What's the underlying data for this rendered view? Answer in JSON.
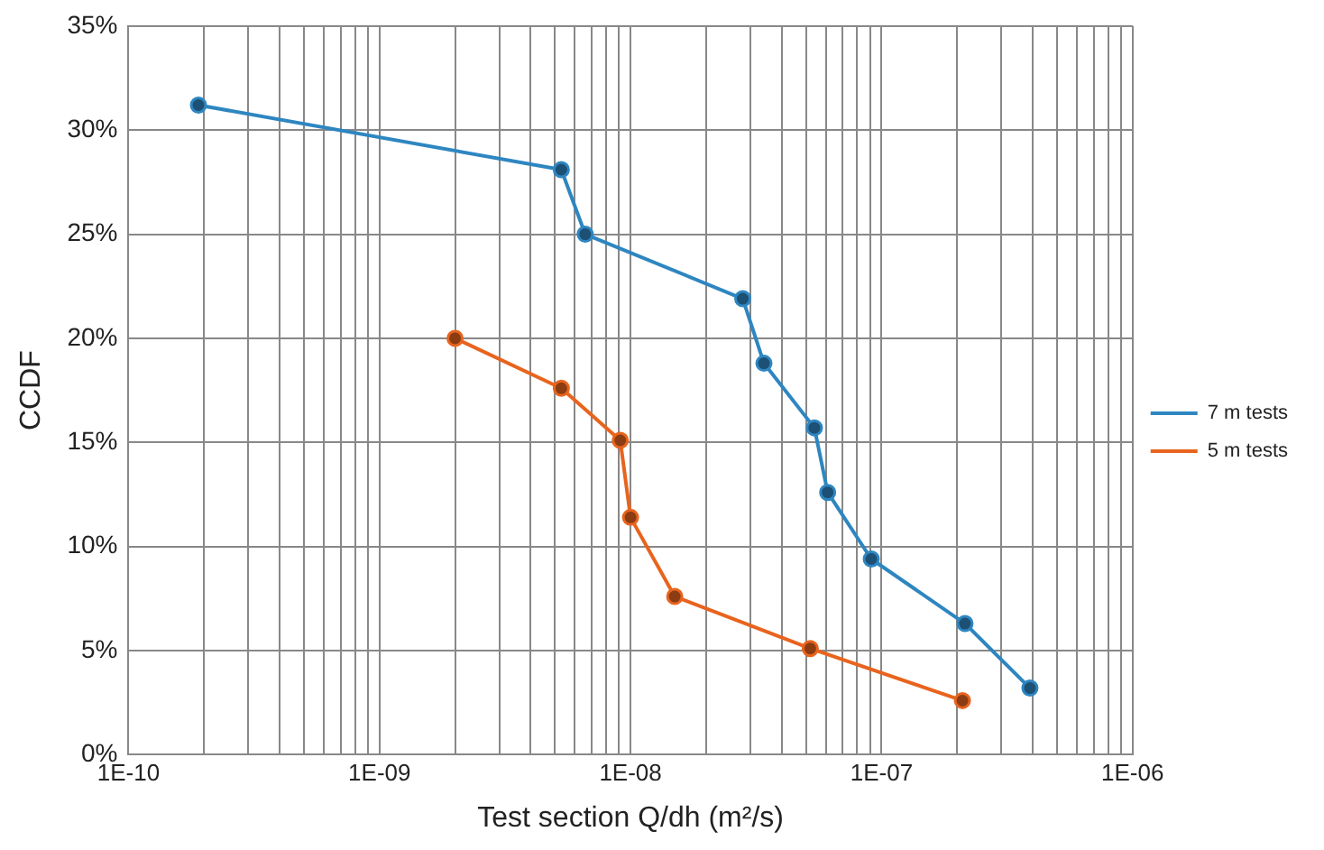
{
  "chart_data": {
    "type": "line",
    "xlabel": "Test section Q/dh (m²/s)",
    "ylabel": "CCDF",
    "log": "x",
    "grid": true,
    "legend": "right",
    "marker": "circle",
    "line_style": "solid",
    "xlim": [
      1e-10,
      1e-06
    ],
    "xticks": [
      {
        "value": 1e-10,
        "label": "1E-10"
      },
      {
        "value": 2e-10,
        "label": null
      },
      {
        "value": 3e-10,
        "label": null
      },
      {
        "value": 4e-10,
        "label": null
      },
      {
        "value": 5e-10,
        "label": null
      },
      {
        "value": 6e-10,
        "label": null
      },
      {
        "value": 7e-10,
        "label": null
      },
      {
        "value": 8e-10,
        "label": null
      },
      {
        "value": 9e-10,
        "label": null
      },
      {
        "value": 1e-09,
        "label": "1E-09"
      },
      {
        "value": 2e-09,
        "label": null
      },
      {
        "value": 3e-09,
        "label": null
      },
      {
        "value": 4e-09,
        "label": null
      },
      {
        "value": 5e-09,
        "label": null
      },
      {
        "value": 6e-09,
        "label": null
      },
      {
        "value": 7e-09,
        "label": null
      },
      {
        "value": 8e-09,
        "label": null
      },
      {
        "value": 9e-09,
        "label": null
      },
      {
        "value": 1e-08,
        "label": "1E-08"
      },
      {
        "value": 2e-08,
        "label": null
      },
      {
        "value": 3e-08,
        "label": null
      },
      {
        "value": 4e-08,
        "label": null
      },
      {
        "value": 5e-08,
        "label": null
      },
      {
        "value": 6e-08,
        "label": null
      },
      {
        "value": 7e-08,
        "label": null
      },
      {
        "value": 8e-08,
        "label": null
      },
      {
        "value": 9e-08,
        "label": null
      },
      {
        "value": 1e-07,
        "label": "1E-07"
      },
      {
        "value": 2e-07,
        "label": null
      },
      {
        "value": 3e-07,
        "label": null
      },
      {
        "value": 4e-07,
        "label": null
      },
      {
        "value": 5e-07,
        "label": null
      },
      {
        "value": 6e-07,
        "label": null
      },
      {
        "value": 7e-07,
        "label": null
      },
      {
        "value": 8e-07,
        "label": null
      },
      {
        "value": 9e-07,
        "label": null
      },
      {
        "value": 1e-06,
        "label": "1E-06"
      }
    ],
    "ylim": [
      0,
      35
    ],
    "yticks": [
      {
        "value": 0,
        "label": "0%"
      },
      {
        "value": 5,
        "label": "5%"
      },
      {
        "value": 10,
        "label": "10%"
      },
      {
        "value": 15,
        "label": "15%"
      },
      {
        "value": 20,
        "label": "20%"
      },
      {
        "value": 25,
        "label": "25%"
      },
      {
        "value": 30,
        "label": "30%"
      },
      {
        "value": 35,
        "label": "35%"
      }
    ],
    "series": [
      {
        "name": "7 m tests",
        "color": "#2e86c1",
        "x": [
          1.9e-10,
          5.3e-09,
          6.6e-09,
          2.8e-08,
          3.4e-08,
          5.4e-08,
          6.1e-08,
          9.1e-08,
          2.15e-07,
          3.9e-07
        ],
        "values": [
          31.2,
          28.1,
          25.0,
          21.9,
          18.8,
          15.7,
          12.6,
          9.4,
          6.3,
          3.2
        ]
      },
      {
        "name": "5 m tests",
        "color": "#e8641e",
        "x": [
          2e-09,
          5.3e-09,
          9.1e-09,
          1e-08,
          1.5e-08,
          5.2e-08,
          2.1e-07
        ],
        "values": [
          20.0,
          17.6,
          15.1,
          11.4,
          7.6,
          5.1,
          2.6
        ]
      }
    ]
  }
}
